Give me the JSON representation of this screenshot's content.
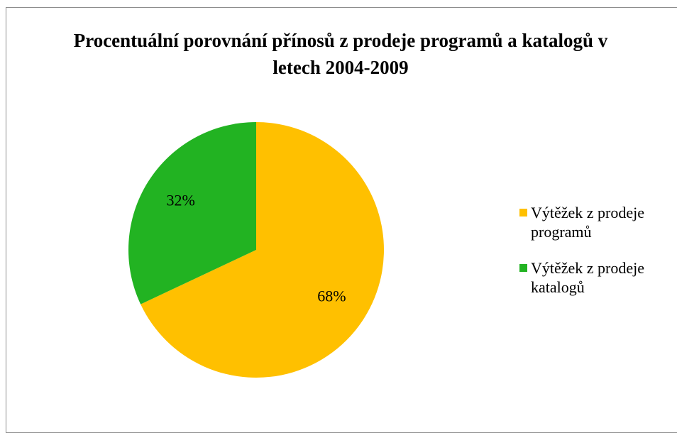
{
  "chart_data": {
    "type": "pie",
    "title": "Procentuální porovnání přínosů z prodeje programů a katalogů v letech 2004-2009",
    "categories": [
      "Výtěžek z prodeje programů",
      "Výtěžek z prodeje katalogů"
    ],
    "values": [
      68,
      32
    ],
    "value_labels": [
      "68%",
      "32%"
    ],
    "colors": [
      "#ffc000",
      "#22b322"
    ],
    "legend": "right"
  }
}
